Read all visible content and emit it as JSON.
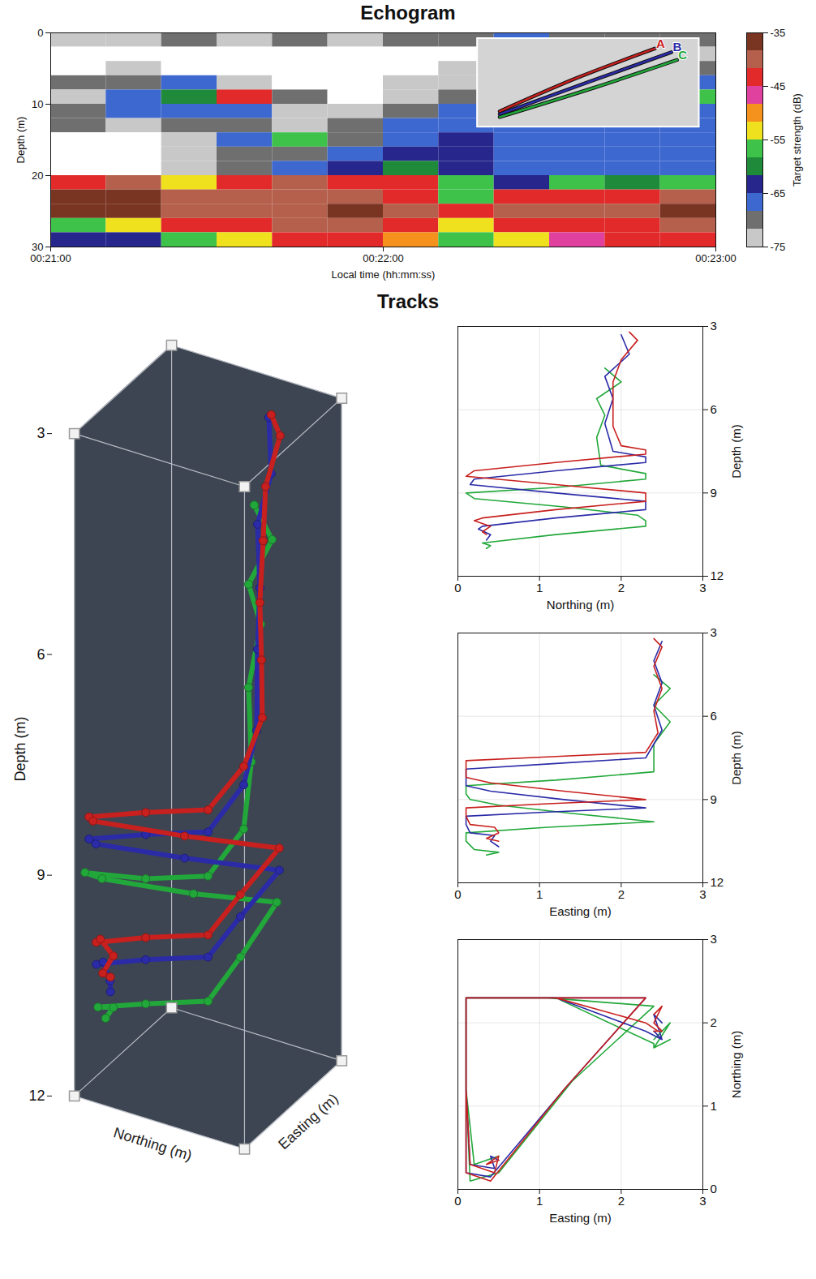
{
  "chart_data": [
    {
      "type": "heatmap",
      "title": "Echogram",
      "x_label": "Local time (hh:mm:ss)",
      "y_label": "Depth (m)",
      "xlim": [
        "00:21:00",
        "00:23:00"
      ],
      "xticks": [
        "00:21:00",
        "00:22:00",
        "00:23:00"
      ],
      "ylim": [
        30,
        0
      ],
      "yticks": [
        0,
        10,
        20,
        30
      ],
      "cells": {
        "x": [
          "00:21:00",
          "00:21:10",
          "00:21:20",
          "00:21:30",
          "00:21:40",
          "00:21:50",
          "00:22:00",
          "00:22:10",
          "00:22:20",
          "00:22:30",
          "00:22:40",
          "00:22:50",
          "00:23:00"
        ],
        "y": [
          0,
          2,
          4,
          6,
          8,
          10,
          12,
          14,
          16,
          18,
          20,
          22,
          24,
          26,
          28,
          30
        ],
        "values": [
          [
            -72,
            -72,
            -70,
            -72,
            -70,
            -72,
            -70,
            -70,
            -68,
            -70,
            -70,
            -70
          ],
          [
            -80,
            -80,
            -80,
            -80,
            -80,
            -80,
            -78,
            -76,
            -72,
            -70,
            -72,
            -72
          ],
          [
            -76,
            -74,
            -80,
            -80,
            -80,
            -80,
            -76,
            -72,
            -70,
            -70,
            -72,
            -70
          ],
          [
            -70,
            -70,
            -68,
            -72,
            -80,
            -80,
            -74,
            -72,
            -70,
            -70,
            -68,
            -68
          ],
          [
            -72,
            -68,
            -60,
            -44,
            -70,
            -78,
            -74,
            -70,
            -68,
            -68,
            -66,
            -56
          ],
          [
            -70,
            -68,
            -66,
            -68,
            -72,
            -72,
            -70,
            -66,
            -66,
            -66,
            -66,
            -66
          ],
          [
            -70,
            -72,
            -70,
            -70,
            -74,
            -70,
            -68,
            -66,
            -66,
            -66,
            -66,
            -66
          ],
          [
            -76,
            -76,
            -72,
            -68,
            -56,
            -70,
            -66,
            -64,
            -66,
            -66,
            -66,
            -66
          ],
          [
            -78,
            -76,
            -72,
            -70,
            -70,
            -68,
            -62,
            -64,
            -66,
            -66,
            -68,
            -66
          ],
          [
            -76,
            -76,
            -72,
            -70,
            -66,
            -62,
            -60,
            -64,
            -66,
            -68,
            -66,
            -66
          ],
          [
            -42,
            -40,
            -52,
            -44,
            -41,
            -43,
            -45,
            -58,
            -62,
            -56,
            -60,
            -58
          ],
          [
            -38,
            -38,
            -40,
            -41,
            -39,
            -41,
            -42,
            -56,
            -44,
            -42,
            -44,
            -41
          ],
          [
            -37,
            -38,
            -40,
            -39,
            -40,
            -38,
            -41,
            -42,
            -40,
            -40,
            -40,
            -38
          ],
          [
            -58,
            -54,
            -44,
            -42,
            -40,
            -41,
            -42,
            -52,
            -44,
            -42,
            -42,
            -40
          ],
          [
            -62,
            -64,
            -56,
            -52,
            -44,
            -44,
            -50,
            -58,
            -54,
            -48,
            -44,
            -43
          ]
        ]
      },
      "colorbar": {
        "label": "Target strength (dB)",
        "range": [
          -75,
          -35
        ],
        "ticks": [
          -75,
          -65,
          -55,
          -45,
          -35
        ],
        "colors": [
          "#c8c8c8",
          "#6f6f6f",
          "#3d68d0",
          "#26268c",
          "#1e8a3a",
          "#3ec24a",
          "#efe11e",
          "#f5921e",
          "#e0409e",
          "#e22a2a",
          "#b5604c",
          "#7a3422"
        ]
      },
      "annotations": [
        {
          "text": "A",
          "color": "#c8201e",
          "x": [
            "00:22:21",
            "00:22:35",
            "00:22:49"
          ],
          "y": [
            11.0,
            6.3,
            2.2
          ]
        },
        {
          "text": "B",
          "color": "#2b2ba8",
          "x": [
            "00:22:21",
            "00:22:37",
            "00:22:52"
          ],
          "y": [
            11.4,
            6.9,
            2.7
          ]
        },
        {
          "text": "C",
          "color": "#22a83a",
          "x": [
            "00:22:21",
            "00:22:38",
            "00:22:53"
          ],
          "y": [
            11.8,
            7.7,
            3.8
          ]
        }
      ]
    },
    {
      "type": "line3d",
      "title": "Tracks",
      "x_label": "Northing (m)",
      "y_label": "Easting (m)",
      "z_label": "Depth (m)",
      "xlim": [
        0,
        3
      ],
      "ylim": [
        0,
        3
      ],
      "zlim": [
        3,
        12
      ],
      "zticks": [
        3,
        6,
        9,
        12
      ],
      "series": [
        {
          "color": "#22a83a",
          "marker": "circle",
          "northing": [
            1.8,
            2.0,
            1.7,
            1.8,
            1.7,
            1.75,
            2.3,
            2.3,
            1.2,
            0.1,
            0.2,
            1.3,
            2.2,
            2.3,
            2.3,
            1.2,
            0.3,
            0.4,
            0.35
          ],
          "easting": [
            2.4,
            2.6,
            2.4,
            2.6,
            2.4,
            2.4,
            1.2,
            0.1,
            0.1,
            0.15,
            0.5,
            1.4,
            2.4,
            1.1,
            0.1,
            0.1,
            0.2,
            0.5,
            0.35
          ],
          "depth": [
            4.5,
            5.0,
            5.6,
            6.2,
            7.0,
            8.0,
            8.3,
            8.5,
            8.8,
            9.0,
            9.2,
            9.5,
            9.8,
            10.0,
            10.2,
            10.5,
            10.8,
            10.9,
            11.0
          ]
        },
        {
          "color": "#2b2ba8",
          "marker": "circle",
          "northing": [
            2.0,
            2.1,
            1.8,
            1.9,
            1.8,
            1.9,
            2.3,
            2.3,
            1.2,
            0.2,
            0.15,
            1.2,
            2.3,
            2.3,
            2.3,
            1.2,
            0.3,
            0.25,
            0.4,
            0.35
          ],
          "easting": [
            2.5,
            2.4,
            2.5,
            2.4,
            2.5,
            2.3,
            1.2,
            0.1,
            0.1,
            0.1,
            0.4,
            1.3,
            2.3,
            1.1,
            0.1,
            0.1,
            0.15,
            0.45,
            0.4,
            0.5
          ],
          "depth": [
            3.3,
            4.0,
            4.8,
            5.6,
            6.5,
            7.5,
            7.7,
            7.9,
            8.2,
            8.5,
            8.7,
            9.0,
            9.3,
            9.45,
            9.6,
            9.9,
            10.2,
            10.3,
            10.5,
            10.7
          ]
        },
        {
          "color": "#c8201e",
          "marker": "circle",
          "northing": [
            2.1,
            2.2,
            2.0,
            1.9,
            1.9,
            1.9,
            2.0,
            2.3,
            2.3,
            1.2,
            0.2,
            0.1,
            1.2,
            2.3,
            2.3,
            2.3,
            1.2,
            0.3,
            0.2,
            0.4,
            0.3,
            0.35
          ],
          "easting": [
            2.4,
            2.5,
            2.4,
            2.5,
            2.4,
            2.45,
            2.3,
            1.2,
            0.1,
            0.1,
            0.1,
            0.4,
            1.3,
            2.3,
            1.1,
            0.1,
            0.1,
            0.15,
            0.45,
            0.5,
            0.35,
            0.5
          ],
          "depth": [
            3.2,
            3.5,
            4.2,
            5.0,
            5.8,
            6.6,
            7.3,
            7.45,
            7.6,
            7.9,
            8.2,
            8.4,
            8.7,
            9.0,
            9.15,
            9.3,
            9.6,
            9.9,
            10.0,
            10.2,
            10.4,
            10.5
          ]
        }
      ]
    },
    {
      "type": "line",
      "x_label": "Northing (m)",
      "y_label": "Depth (m)",
      "xlim": [
        0,
        3
      ],
      "xticks": [
        0,
        1,
        2,
        3
      ],
      "ylim": [
        12,
        3
      ],
      "yticks": [
        3,
        6,
        9,
        12
      ],
      "grid": true,
      "series": [
        {
          "color": "#22a83a",
          "x": [
            1.8,
            2.0,
            1.7,
            1.8,
            1.7,
            1.75,
            2.3,
            2.3,
            1.2,
            0.1,
            0.2,
            1.3,
            2.2,
            2.3,
            2.3,
            1.2,
            0.3,
            0.4,
            0.35
          ],
          "y": [
            4.5,
            5.0,
            5.6,
            6.2,
            7.0,
            8.0,
            8.3,
            8.5,
            8.8,
            9.0,
            9.2,
            9.5,
            9.8,
            10.0,
            10.2,
            10.5,
            10.8,
            10.9,
            11.0
          ]
        },
        {
          "color": "#2b2ba8",
          "x": [
            2.0,
            2.1,
            1.8,
            1.9,
            1.8,
            1.9,
            2.3,
            2.3,
            1.2,
            0.2,
            0.15,
            1.2,
            2.3,
            2.3,
            2.3,
            1.2,
            0.3,
            0.25,
            0.4,
            0.35
          ],
          "y": [
            3.3,
            4.0,
            4.8,
            5.6,
            6.5,
            7.5,
            7.7,
            7.9,
            8.2,
            8.5,
            8.7,
            9.0,
            9.3,
            9.45,
            9.6,
            9.9,
            10.2,
            10.3,
            10.5,
            10.7
          ]
        },
        {
          "color": "#c8201e",
          "x": [
            2.1,
            2.2,
            2.0,
            1.9,
            1.9,
            1.9,
            2.0,
            2.3,
            2.3,
            1.2,
            0.2,
            0.1,
            1.2,
            2.3,
            2.3,
            2.3,
            1.2,
            0.3,
            0.2,
            0.4,
            0.3,
            0.35
          ],
          "y": [
            3.2,
            3.5,
            4.2,
            5.0,
            5.8,
            6.6,
            7.3,
            7.45,
            7.6,
            7.9,
            8.2,
            8.4,
            8.7,
            9.0,
            9.15,
            9.3,
            9.6,
            9.9,
            10.0,
            10.2,
            10.4,
            10.5
          ]
        }
      ]
    },
    {
      "type": "line",
      "x_label": "Easting (m)",
      "y_label": "Depth (m)",
      "xlim": [
        0,
        3
      ],
      "xticks": [
        0,
        1,
        2,
        3
      ],
      "ylim": [
        12,
        3
      ],
      "yticks": [
        3,
        6,
        9,
        12
      ],
      "grid": true,
      "series": [
        {
          "color": "#22a83a",
          "x": [
            2.4,
            2.6,
            2.4,
            2.6,
            2.4,
            2.4,
            1.2,
            0.1,
            0.1,
            0.15,
            0.5,
            1.4,
            2.4,
            1.1,
            0.1,
            0.1,
            0.2,
            0.5,
            0.35
          ],
          "y": [
            4.5,
            5.0,
            5.6,
            6.2,
            7.0,
            8.0,
            8.3,
            8.5,
            8.8,
            9.0,
            9.2,
            9.5,
            9.8,
            10.0,
            10.2,
            10.5,
            10.8,
            10.9,
            11.0
          ]
        },
        {
          "color": "#2b2ba8",
          "x": [
            2.5,
            2.4,
            2.5,
            2.4,
            2.5,
            2.3,
            1.2,
            0.1,
            0.1,
            0.1,
            0.4,
            1.3,
            2.3,
            1.1,
            0.1,
            0.1,
            0.15,
            0.45,
            0.4,
            0.5
          ],
          "y": [
            3.3,
            4.0,
            4.8,
            5.6,
            6.5,
            7.5,
            7.7,
            7.9,
            8.2,
            8.5,
            8.7,
            9.0,
            9.3,
            9.45,
            9.6,
            9.9,
            10.2,
            10.3,
            10.5,
            10.7
          ]
        },
        {
          "color": "#c8201e",
          "x": [
            2.4,
            2.5,
            2.4,
            2.5,
            2.4,
            2.45,
            2.3,
            1.2,
            0.1,
            0.1,
            0.1,
            0.4,
            1.3,
            2.3,
            1.1,
            0.1,
            0.1,
            0.15,
            0.45,
            0.5,
            0.35,
            0.5
          ],
          "y": [
            3.2,
            3.5,
            4.2,
            5.0,
            5.8,
            6.6,
            7.3,
            7.45,
            7.6,
            7.9,
            8.2,
            8.4,
            8.7,
            9.0,
            9.15,
            9.3,
            9.6,
            9.9,
            10.0,
            10.2,
            10.4,
            10.5
          ]
        }
      ]
    },
    {
      "type": "line",
      "x_label": "Easting (m)",
      "y_label": "Northing (m)",
      "xlim": [
        0,
        3
      ],
      "xticks": [
        0,
        1,
        2,
        3
      ],
      "ylim": [
        0,
        3
      ],
      "yticks": [
        0,
        1,
        2,
        3
      ],
      "grid": true,
      "series": [
        {
          "color": "#22a83a",
          "x": [
            2.4,
            2.6,
            2.4,
            2.6,
            2.4,
            2.4,
            1.2,
            0.1,
            0.1,
            0.15,
            0.5,
            1.4,
            2.4,
            1.1,
            0.1,
            0.1,
            0.2,
            0.5,
            0.35
          ],
          "y": [
            1.8,
            2.0,
            1.7,
            1.8,
            1.7,
            1.75,
            2.3,
            2.3,
            1.2,
            0.1,
            0.2,
            1.3,
            2.2,
            2.3,
            2.3,
            1.2,
            0.3,
            0.4,
            0.35
          ]
        },
        {
          "color": "#2b2ba8",
          "x": [
            2.5,
            2.4,
            2.5,
            2.4,
            2.5,
            2.3,
            1.2,
            0.1,
            0.1,
            0.1,
            0.4,
            1.3,
            2.3,
            1.1,
            0.1,
            0.1,
            0.15,
            0.45,
            0.4,
            0.5
          ],
          "y": [
            2.0,
            2.1,
            1.8,
            1.9,
            1.8,
            1.9,
            2.3,
            2.3,
            1.2,
            0.2,
            0.15,
            1.2,
            2.3,
            2.3,
            2.3,
            1.2,
            0.3,
            0.25,
            0.4,
            0.35
          ]
        },
        {
          "color": "#c8201e",
          "x": [
            2.4,
            2.5,
            2.4,
            2.5,
            2.4,
            2.45,
            2.3,
            1.2,
            0.1,
            0.1,
            0.1,
            0.4,
            1.3,
            2.3,
            1.1,
            0.1,
            0.1,
            0.15,
            0.45,
            0.5,
            0.35,
            0.5
          ],
          "y": [
            2.1,
            2.2,
            2.0,
            1.9,
            1.9,
            1.9,
            2.0,
            2.3,
            2.3,
            1.2,
            0.2,
            0.1,
            1.2,
            2.3,
            2.3,
            2.3,
            1.2,
            0.3,
            0.2,
            0.4,
            0.3,
            0.35
          ]
        }
      ]
    }
  ]
}
